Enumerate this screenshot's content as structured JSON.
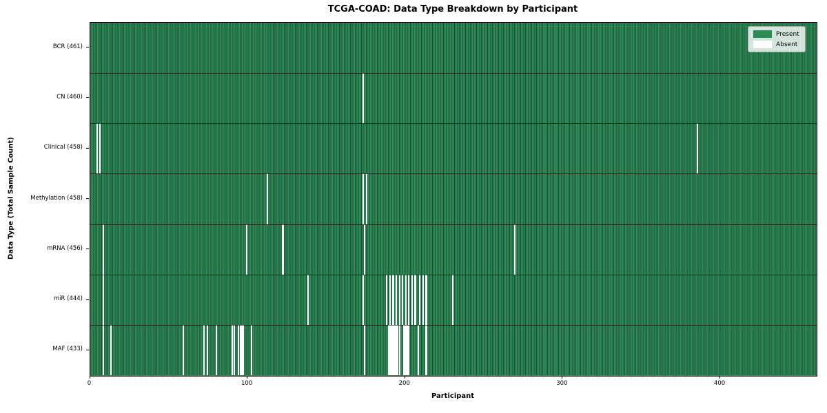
{
  "title": "TCGA-COAD: Data Type Breakdown by Participant",
  "axes": {
    "xlabel": "Participant",
    "ylabel": "Data Type (Total Sample Count)"
  },
  "legend": {
    "position": "upper right",
    "items": [
      {
        "label": "Present",
        "color": "#2e8b57"
      },
      {
        "label": "Absent",
        "color": "#ffffff"
      }
    ]
  },
  "chart_data": {
    "type": "heatmap",
    "title": "TCGA-COAD: Data Type Breakdown by Participant",
    "xlabel": "Participant",
    "ylabel": "Data Type (Total Sample Count)",
    "x_ticks": [
      0,
      100,
      200,
      300,
      400
    ],
    "xlim": [
      0,
      461
    ],
    "n_participants": 461,
    "grid": false,
    "legend_position": "upper right",
    "colors": {
      "present": "#2e8b57",
      "present_edge": "#1b5236",
      "absent": "#ffffff"
    },
    "rows": [
      {
        "label": "BCR (461)",
        "data_type": "BCR",
        "total_samples": 461,
        "absent_participants": []
      },
      {
        "label": "CN (460)",
        "data_type": "CN",
        "total_samples": 460,
        "absent_participants": [
          173
        ]
      },
      {
        "label": "Clinical (458)",
        "data_type": "Clinical",
        "total_samples": 458,
        "absent_participants": [
          4,
          6,
          385
        ]
      },
      {
        "label": "Methylation (458)",
        "data_type": "Methylation",
        "total_samples": 458,
        "absent_participants": [
          112,
          173,
          175
        ]
      },
      {
        "label": "mRNA (456)",
        "data_type": "mRNA",
        "total_samples": 456,
        "absent_participants": [
          8,
          99,
          122,
          174,
          269
        ]
      },
      {
        "label": "miR (444)",
        "data_type": "miR",
        "total_samples": 444,
        "absent_participants": [
          8,
          138,
          173,
          188,
          190,
          192,
          194,
          196,
          198,
          200,
          202,
          204,
          206,
          209,
          211,
          213,
          230
        ]
      },
      {
        "label": "MAF (433)",
        "data_type": "MAF",
        "total_samples": 433,
        "absent_participants": [
          8,
          13,
          59,
          72,
          74,
          80,
          90,
          91,
          94,
          95,
          96,
          97,
          102,
          174,
          189,
          190,
          191,
          192,
          193,
          194,
          195,
          196,
          199,
          200,
          201,
          202,
          208,
          213
        ]
      }
    ]
  }
}
